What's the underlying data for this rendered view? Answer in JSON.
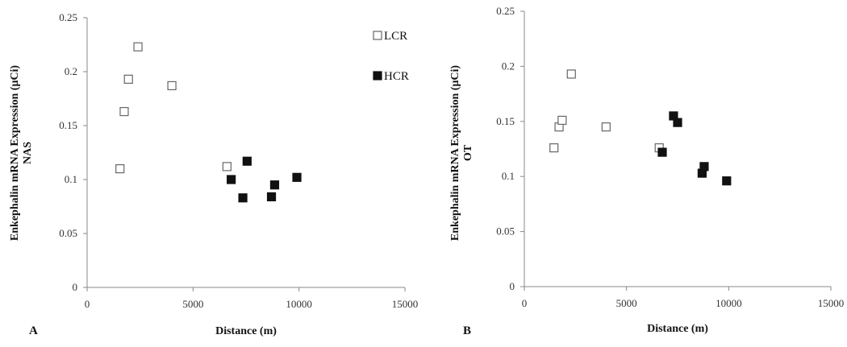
{
  "chart_data": [
    {
      "type": "scatter",
      "panel_label": "A",
      "xlabel": "Distance (m)",
      "ylabel": "Enkephalin mRNA Expression (μCi)",
      "ylabel_sub": "NAS",
      "xlim": [
        0,
        15000
      ],
      "ylim": [
        0,
        0.25
      ],
      "xticks": [
        "0",
        "5000",
        "10000",
        "15000"
      ],
      "yticks": [
        "0",
        "0.05",
        "0.1",
        "0.15",
        "0.2",
        "0.25"
      ],
      "grid": false,
      "legend": "top-right",
      "series": [
        {
          "name": "LCR",
          "marker": "open-square",
          "points": [
            [
              1550,
              0.11
            ],
            [
              1750,
              0.163
            ],
            [
              1950,
              0.193
            ],
            [
              2400,
              0.223
            ],
            [
              4000,
              0.187
            ],
            [
              6600,
              0.112
            ]
          ]
        },
        {
          "name": "HCR",
          "marker": "filled-square",
          "points": [
            [
              6800,
              0.1
            ],
            [
              7350,
              0.083
            ],
            [
              7550,
              0.117
            ],
            [
              8700,
              0.084
            ],
            [
              8850,
              0.095
            ],
            [
              9900,
              0.102
            ]
          ]
        }
      ]
    },
    {
      "type": "scatter",
      "panel_label": "B",
      "xlabel": "Distance (m)",
      "ylabel": "Enkephalin mRNA Expression (μCi)",
      "ylabel_sub": "OT",
      "xlim": [
        0,
        15000
      ],
      "ylim": [
        0,
        0.25
      ],
      "xticks": [
        "0",
        "5000",
        "10000",
        "15000"
      ],
      "yticks": [
        "0",
        "0.05",
        "0.1",
        "0.15",
        "0.2",
        "0.25"
      ],
      "grid": false,
      "series": [
        {
          "name": "LCR",
          "marker": "open-square",
          "points": [
            [
              1450,
              0.126
            ],
            [
              1700,
              0.145
            ],
            [
              1850,
              0.151
            ],
            [
              2300,
              0.193
            ],
            [
              4000,
              0.145
            ],
            [
              6600,
              0.126
            ]
          ]
        },
        {
          "name": "HCR",
          "marker": "filled-square",
          "points": [
            [
              6750,
              0.122
            ],
            [
              7300,
              0.155
            ],
            [
              7500,
              0.149
            ],
            [
              8700,
              0.103
            ],
            [
              8800,
              0.109
            ],
            [
              9900,
              0.096
            ]
          ]
        }
      ]
    }
  ]
}
